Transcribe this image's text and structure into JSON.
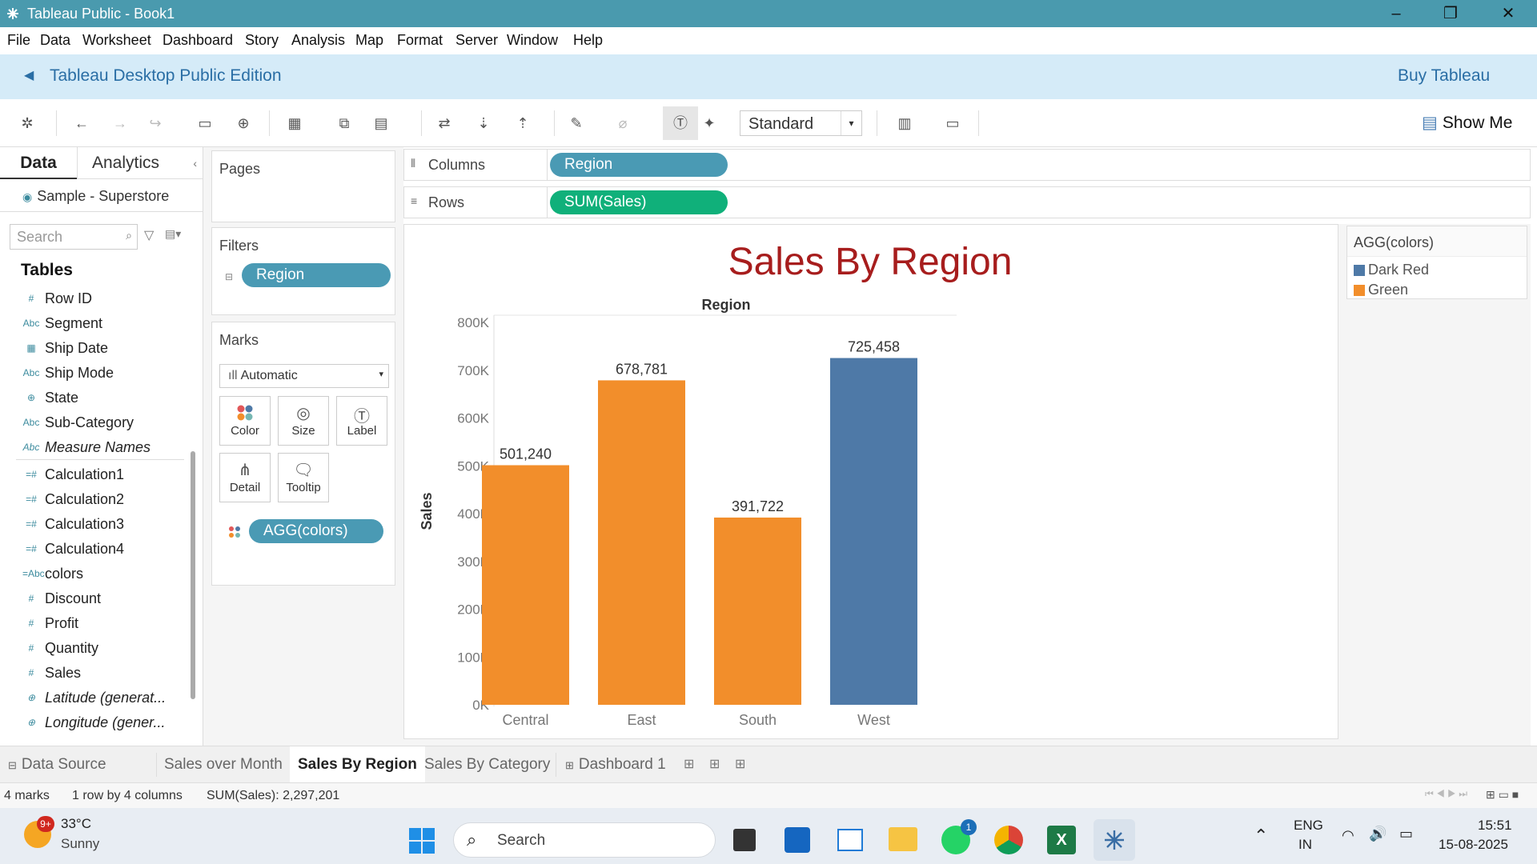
{
  "window": {
    "title": "Tableau Public - Book1"
  },
  "menu": [
    "File",
    "Data",
    "Worksheet",
    "Dashboard",
    "Story",
    "Analysis",
    "Map",
    "Format",
    "Server",
    "Window",
    "Help"
  ],
  "banner": {
    "edition": "Tableau Desktop Public Edition",
    "buy": "Buy Tableau"
  },
  "toolbar": {
    "view_mode": "Standard",
    "show_me": "Show Me"
  },
  "data_pane": {
    "tabs": [
      "Data",
      "Analytics"
    ],
    "datasource": "Sample - Superstore",
    "search_placeholder": "Search",
    "tables_header": "Tables",
    "fields": [
      {
        "icon": "#",
        "name": "Row ID"
      },
      {
        "icon": "Abc",
        "name": "Segment"
      },
      {
        "icon": "▦",
        "name": "Ship Date"
      },
      {
        "icon": "Abc",
        "name": "Ship Mode"
      },
      {
        "icon": "⊕",
        "name": "State"
      },
      {
        "icon": "Abc",
        "name": "Sub-Category"
      },
      {
        "icon": "Abc",
        "name": "Measure Names"
      },
      {
        "icon": "=#",
        "name": "Calculation1"
      },
      {
        "icon": "=#",
        "name": "Calculation2"
      },
      {
        "icon": "=#",
        "name": "Calculation3"
      },
      {
        "icon": "=#",
        "name": "Calculation4"
      },
      {
        "icon": "=Abc",
        "name": "colors"
      },
      {
        "icon": "#",
        "name": "Discount"
      },
      {
        "icon": "#",
        "name": "Profit"
      },
      {
        "icon": "#",
        "name": "Quantity"
      },
      {
        "icon": "#",
        "name": "Sales"
      },
      {
        "icon": "⊕",
        "name": "Latitude (generat..."
      },
      {
        "icon": "⊕",
        "name": "Longitude (gener..."
      }
    ]
  },
  "pages_label": "Pages",
  "filters": {
    "label": "Filters",
    "pill": "Region"
  },
  "marks": {
    "label": "Marks",
    "type": "Automatic",
    "cards": [
      "Color",
      "Size",
      "Label",
      "Detail",
      "Tooltip"
    ],
    "pill": "AGG(colors)"
  },
  "shelves": {
    "columns_label": "Columns",
    "columns_pill": "Region",
    "rows_label": "Rows",
    "rows_pill": "SUM(Sales)"
  },
  "legend": {
    "title": "AGG(colors)",
    "items": [
      {
        "label": "Dark Red",
        "color": "#4e79a7"
      },
      {
        "label": "Green",
        "color": "#f28e2b"
      }
    ]
  },
  "chart_data": {
    "type": "bar",
    "title": "Sales By Region",
    "header": "Region",
    "ylabel": "Sales",
    "categories": [
      "Central",
      "East",
      "South",
      "West"
    ],
    "values": [
      501240,
      678781,
      391722,
      725458
    ],
    "value_labels": [
      "501,240",
      "678,781",
      "391,722",
      "725,458"
    ],
    "colors": [
      "#f28e2b",
      "#f28e2b",
      "#f28e2b",
      "#4e79a7"
    ],
    "ylim": [
      0,
      800000
    ],
    "yticks": [
      0,
      100000,
      200000,
      300000,
      400000,
      500000,
      600000,
      700000,
      800000
    ],
    "ytick_labels": [
      "0K",
      "100K",
      "200K",
      "300K",
      "400K",
      "500K",
      "600K",
      "700K",
      "800K"
    ]
  },
  "sheet_tabs": [
    "Data Source",
    "Sales over Month",
    "Sales By Region",
    "Sales By Category",
    "Dashboard 1"
  ],
  "active_tab": "Sales By Region",
  "status": {
    "marks": "4 marks",
    "layout": "1 row by 4 columns",
    "sum": "SUM(Sales): 2,297,201"
  },
  "taskbar": {
    "weather_badge": "9+",
    "temp": "33°C",
    "condition": "Sunny",
    "search": "Search",
    "whatsapp_badge": "1",
    "lang1": "ENG",
    "lang2": "IN",
    "time": "15:51",
    "date": "15-08-2025"
  }
}
